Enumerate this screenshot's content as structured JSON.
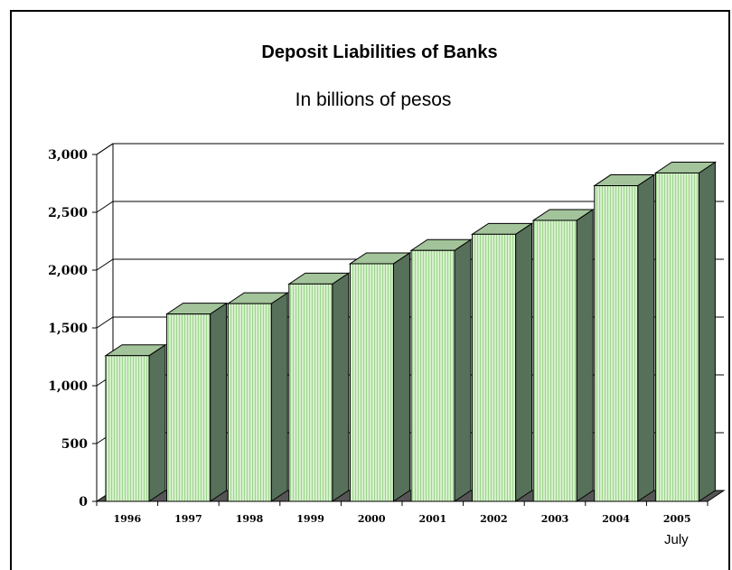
{
  "chart_data": {
    "type": "bar",
    "title": "Deposit Liabilities of Banks",
    "subtitle": "In billions of pesos",
    "categories": [
      "1996",
      "1997",
      "1998",
      "1999",
      "2000",
      "2001",
      "2002",
      "2003",
      "2004",
      "2005"
    ],
    "values": [
      1260,
      1620,
      1710,
      1880,
      2055,
      2170,
      2310,
      2430,
      2730,
      2840
    ],
    "x_note": "July",
    "xlabel": "",
    "ylabel": "",
    "ylim": [
      0,
      3000
    ],
    "yticks": [
      0,
      500,
      1000,
      1500,
      2000,
      2500,
      3000
    ],
    "ytick_labels": [
      "0",
      "500",
      "1,000",
      "1,500",
      "2,000",
      "2,500",
      "3,000"
    ],
    "grid": true,
    "style": "3d",
    "colors": {
      "bar_front": "#d6f0cc",
      "bar_stripe": "#9ed48e",
      "bar_top": "#a3c49a",
      "bar_side": "#56705a",
      "floor": "#555555"
    }
  }
}
